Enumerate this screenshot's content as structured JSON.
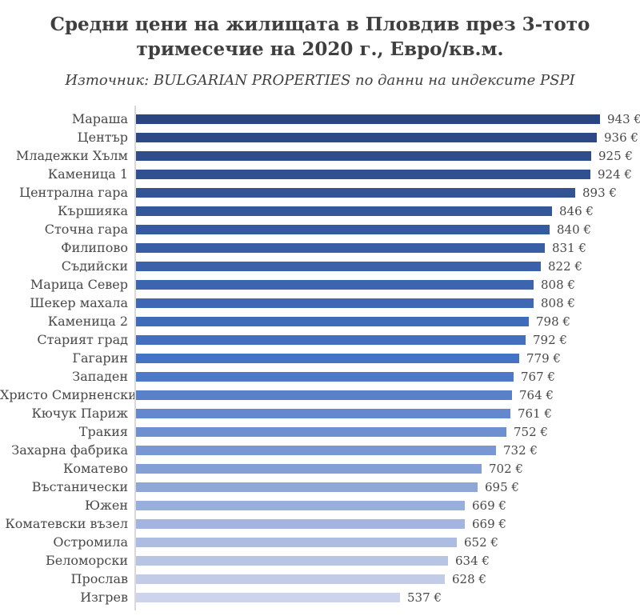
{
  "header": {
    "title_line1": "Средни цени на жилищата в Пловдив през 3-тото",
    "title_line2": "тримесечие на 2020 г., Евро/кв.м.",
    "subtitle": "Източник: BULGARIAN PROPERTIES по данни на индексите PSPI"
  },
  "chart_data": {
    "type": "bar",
    "orientation": "horizontal",
    "title": "Средни цени на жилищата в Пловдив през 3-тото тримесечие на 2020 г., Евро/кв.м.",
    "subtitle": "Източник: BULGARIAN PROPERTIES по данни на индексите PSPI",
    "unit": "Евро/кв.м.",
    "value_suffix": " €",
    "xlim": [
      0,
      943
    ],
    "grid": false,
    "legend": false,
    "data_labels": "outside-end",
    "categories": [
      "Мараша",
      "Център",
      "Младежки Хълм",
      "Каменица 1",
      "Централна гара",
      "Кършияка",
      "Сточна гара",
      "Филипово",
      "Съдийски",
      "Марица Север",
      "Шекер махала",
      "Каменица 2",
      "Старият град",
      "Гагарин",
      "Западен",
      "Христо Смирненски",
      "Кючук Париж",
      "Тракия",
      "Захарна фабрика",
      "Коматево",
      "Въстанически",
      "Южен",
      "Коматевски възел",
      "Остромила",
      "Беломорски",
      "Прослав",
      "Изгрев"
    ],
    "values": [
      943,
      936,
      925,
      924,
      893,
      846,
      840,
      831,
      822,
      808,
      808,
      798,
      792,
      779,
      767,
      764,
      761,
      752,
      732,
      702,
      695,
      669,
      669,
      652,
      634,
      628,
      537
    ],
    "bar_colors": [
      "#2A4680",
      "#2C4985",
      "#2E4D8A",
      "#305090",
      "#325495",
      "#34579A",
      "#365A9F",
      "#385EA5",
      "#3A61AA",
      "#3C64AF",
      "#3E68B4",
      "#406BBA",
      "#426FBF",
      "#4472C4",
      "#4F79C7",
      "#5981CA",
      "#6488CD",
      "#6E90D0",
      "#7997D3",
      "#839FD6",
      "#8EA6D8",
      "#98AEDB",
      "#A3B5DE",
      "#ADBDE1",
      "#B8C4E4",
      "#C2CCE7",
      "#CDD3EA"
    ],
    "axis_line_color": "#D9D9D9",
    "text_color": "#404040",
    "background_color": "#FFFFFF"
  }
}
